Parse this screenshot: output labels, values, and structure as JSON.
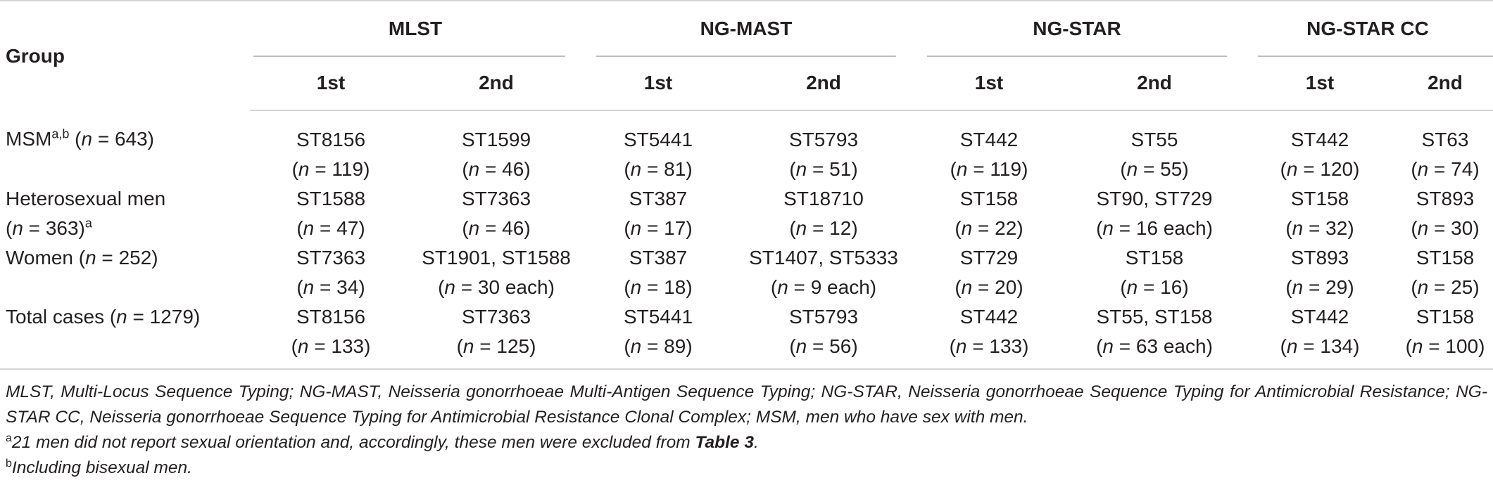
{
  "headers": {
    "group": "Group",
    "columns": [
      "MLST",
      "NG-MAST",
      "NG-STAR",
      "NG-STAR CC"
    ],
    "sub": [
      "1st",
      "2nd"
    ]
  },
  "rows": [
    {
      "label": "MSM",
      "label_sup": "a,b",
      "label_suffix_pre": " (",
      "label_n": "n",
      "label_suffix": " = 643)",
      "cells": [
        {
          "st": "ST8156",
          "n": "119"
        },
        {
          "st": "ST1599",
          "n": "46"
        },
        {
          "st": "ST5441",
          "n": "81"
        },
        {
          "st": "ST5793",
          "n": "51"
        },
        {
          "st": "ST442",
          "n": "119"
        },
        {
          "st": "ST55",
          "n": "55"
        },
        {
          "st": "ST442",
          "n": "120"
        },
        {
          "st": "ST63",
          "n": "74"
        }
      ]
    },
    {
      "label": "Heterosexual men",
      "label_line2_pre": "(",
      "label_n": "n",
      "label_line2": " = 363)",
      "label_sup": "a",
      "cells": [
        {
          "st": "ST1588",
          "n": "47"
        },
        {
          "st": "ST7363",
          "n": "46"
        },
        {
          "st": "ST387",
          "n": "17"
        },
        {
          "st": "ST18710",
          "n": "12"
        },
        {
          "st": "ST158",
          "n": "22"
        },
        {
          "st": "ST90, ST729",
          "n": "16 each"
        },
        {
          "st": "ST158",
          "n": "32"
        },
        {
          "st": "ST893",
          "n": "30"
        }
      ]
    },
    {
      "label": "Women (",
      "label_n": "n",
      "label_suffix": " = 252)",
      "cells": [
        {
          "st": "ST7363",
          "n": "34"
        },
        {
          "st": "ST1901, ST1588",
          "n": "30 each"
        },
        {
          "st": "ST387",
          "n": "18"
        },
        {
          "st": "ST1407, ST5333",
          "n": "9 each"
        },
        {
          "st": "ST729",
          "n": "20"
        },
        {
          "st": "ST158",
          "n": "16"
        },
        {
          "st": "ST893",
          "n": "29"
        },
        {
          "st": "ST158",
          "n": "25"
        }
      ]
    },
    {
      "label": "Total cases (",
      "label_n": "n",
      "label_suffix": " = 1279)",
      "cells": [
        {
          "st": "ST8156",
          "n": "133"
        },
        {
          "st": "ST7363",
          "n": "125"
        },
        {
          "st": "ST5441",
          "n": "89"
        },
        {
          "st": "ST5793",
          "n": "56"
        },
        {
          "st": "ST442",
          "n": "133"
        },
        {
          "st": "ST55, ST158",
          "n": "63 each"
        },
        {
          "st": "ST442",
          "n": "134"
        },
        {
          "st": "ST158",
          "n": "100"
        }
      ]
    }
  ],
  "n_prefix": "(",
  "n_letter": "n",
  "n_eq": " = ",
  "n_suffix": ")",
  "footnotes": {
    "abbreviations": "MLST, Multi-Locus Sequence Typing; NG-MAST, Neisseria gonorrhoeae Multi-Antigen Sequence Typing; NG-STAR, Neisseria gonorrhoeae Sequence Typing for Antimicrobial Resistance; NG-STAR CC, Neisseria gonorrhoeae Sequence Typing for Antimicrobial Resistance Clonal Complex; MSM, men who have sex with men.",
    "a_mark": "a",
    "a_text": "21 men did not report sexual orientation and, accordingly, these men were excluded from ",
    "a_ref": "Table 3",
    "a_end": ".",
    "b_mark": "b",
    "b_text": "Including bisexual men."
  }
}
